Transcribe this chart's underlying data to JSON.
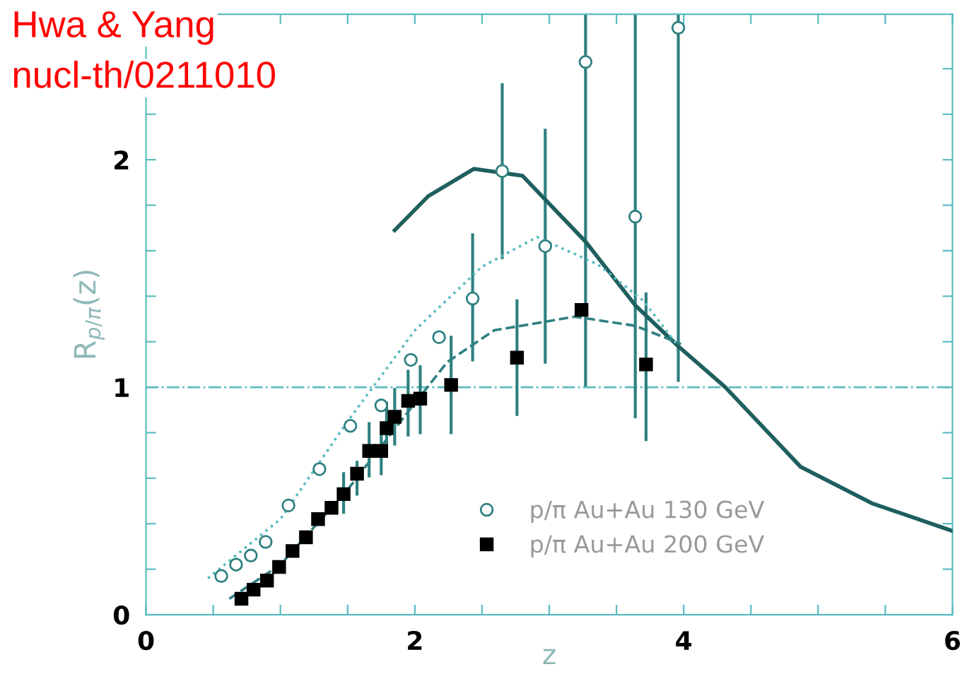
{
  "chart_data": {
    "type": "scatter",
    "xlabel": "z",
    "ylabel": "R$_{p/π}$(z)",
    "annotations": [
      "Hwa & Yang",
      "nucl-th/0211010"
    ],
    "xlim": [
      0,
      6
    ],
    "ylim": [
      0,
      2.64
    ],
    "xticks": [
      0,
      {
        "value": 0.5,
        "label": null
      },
      {
        "value": 1,
        "label": null
      },
      {
        "value": 1.5,
        "label": null
      },
      2,
      {
        "value": 2.5,
        "label": null
      },
      {
        "value": 3,
        "label": null
      },
      {
        "value": 3.5,
        "label": null
      },
      4,
      {
        "value": 4.5,
        "label": null
      },
      {
        "value": 5,
        "label": null
      },
      {
        "value": 5.5,
        "label": null
      },
      6
    ],
    "yticks": [
      0,
      {
        "value": 0.2,
        "label": null
      },
      {
        "value": 0.4,
        "label": null
      },
      {
        "value": 0.6,
        "label": null
      },
      {
        "value": 0.8,
        "label": null
      },
      1,
      {
        "value": 1.2,
        "label": null
      },
      {
        "value": 1.4,
        "label": null
      },
      {
        "value": 1.6,
        "label": null
      },
      {
        "value": 1.8,
        "label": null
      },
      2,
      {
        "value": 2.2,
        "label": null
      },
      {
        "value": 2.4,
        "label": null
      }
    ],
    "legend": "bottom",
    "ref_lines": [
      {
        "axis": "y",
        "value": 1,
        "color": "#5bbcc0",
        "line_style": "dashdot"
      }
    ],
    "series": [
      {
        "name": "p/π Au+Au 130 GeV",
        "color": "#2f8080",
        "marker": "circle",
        "x": [
          0.56,
          0.67,
          0.78,
          0.89,
          1.06,
          1.29,
          1.52,
          1.75,
          1.97,
          2.18,
          2.43,
          2.65,
          2.97,
          3.27,
          3.64,
          3.96
        ],
        "values": [
          0.17,
          0.22,
          0.26,
          0.32,
          0.48,
          0.64,
          0.83,
          0.92,
          1.12,
          1.22,
          1.39,
          1.95,
          1.62,
          2.43,
          1.75,
          2.58
        ],
        "errors": [
          null,
          null,
          null,
          null,
          null,
          null,
          null,
          null,
          null,
          null,
          [
            1.12,
            1.67
          ],
          [
            1.57,
            2.33
          ],
          [
            1.11,
            2.13
          ],
          [
            1.01,
            2.64
          ],
          [
            0.87,
            2.64
          ],
          [
            1.03,
            2.64
          ]
        ]
      },
      {
        "name": "p/π Au+Au 200 GeV",
        "color": "#000000",
        "marker": "square",
        "x": [
          0.71,
          0.8,
          0.9,
          0.99,
          1.09,
          1.19,
          1.28,
          1.38,
          1.47,
          1.57,
          1.66,
          1.75,
          1.79,
          1.85,
          1.95,
          2.04,
          2.27,
          2.76,
          3.24,
          3.72
        ],
        "values": [
          0.07,
          0.11,
          0.15,
          0.21,
          0.28,
          0.34,
          0.42,
          0.47,
          0.53,
          0.62,
          0.72,
          0.72,
          0.82,
          0.87,
          0.94,
          0.95,
          1.01,
          1.13,
          1.34,
          1.1
        ],
        "errors": [
          null,
          null,
          null,
          null,
          null,
          null,
          null,
          null,
          [
            0.45,
            0.62
          ],
          [
            0.53,
            0.67
          ],
          [
            0.61,
            0.84
          ],
          [
            0.62,
            0.79
          ],
          [
            0.71,
            0.93
          ],
          [
            0.75,
            0.99
          ],
          [
            0.79,
            1.07
          ],
          [
            0.8,
            1.09
          ],
          [
            0.8,
            1.22
          ],
          [
            0.88,
            1.38
          ],
          null,
          [
            0.77,
            1.41
          ]
        ]
      },
      {
        "type": "line",
        "color": "#1f5f5f",
        "line_style": "solid",
        "x": [
          1.85,
          2.1,
          2.44,
          2.8,
          3.27,
          3.64,
          3.96,
          4.31,
          4.87,
          5.4,
          5.99
        ],
        "values": [
          1.69,
          1.84,
          1.96,
          1.93,
          1.64,
          1.36,
          1.18,
          1.0,
          0.65,
          0.49,
          0.37
        ]
      },
      {
        "type": "line",
        "color": "#5bbcc0",
        "line_style": "dotted",
        "x": [
          0.46,
          1.0,
          1.5,
          2.0,
          2.5,
          2.91,
          3.36,
          3.7,
          3.96
        ],
        "values": [
          0.16,
          0.42,
          0.85,
          1.25,
          1.53,
          1.66,
          1.54,
          1.38,
          1.18
        ]
      },
      {
        "type": "line",
        "color": "#2f8080",
        "line_style": "dashed",
        "x": [
          0.62,
          1.0,
          1.5,
          2.0,
          2.24,
          2.59,
          3.19,
          3.64,
          3.98
        ],
        "values": [
          0.07,
          0.22,
          0.55,
          0.93,
          1.11,
          1.25,
          1.31,
          1.27,
          1.19
        ]
      }
    ]
  }
}
